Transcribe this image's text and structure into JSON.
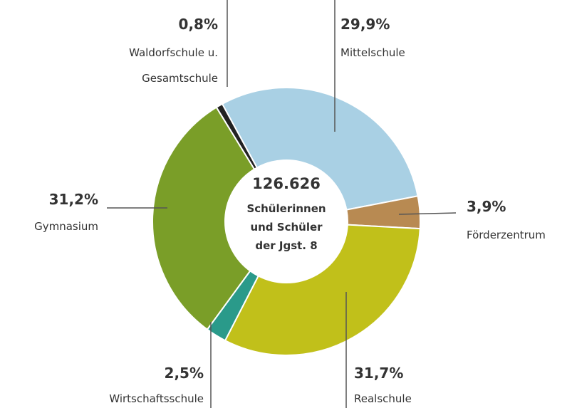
{
  "chart_data": {
    "type": "donut",
    "categories": [
      "Mittelschule",
      "Förderzentrum",
      "Realschule",
      "Wirtschaftsschule",
      "Gymnasium",
      "Waldorfschule u. Gesamtschule"
    ],
    "values": [
      29.9,
      3.9,
      31.7,
      2.5,
      31.2,
      0.8
    ],
    "value_labels": [
      "29,9%",
      "3,9%",
      "31,7%",
      "2,5%",
      "31,2%",
      "0,8%"
    ],
    "colors": [
      "#a9d0e4",
      "#b88a52",
      "#c1c01a",
      "#2a9a8a",
      "#7a9e28",
      "#222222"
    ],
    "center_lines": [
      "126.626",
      "Schülerinnen",
      "und Schüler",
      "der Jgst. 8"
    ]
  }
}
